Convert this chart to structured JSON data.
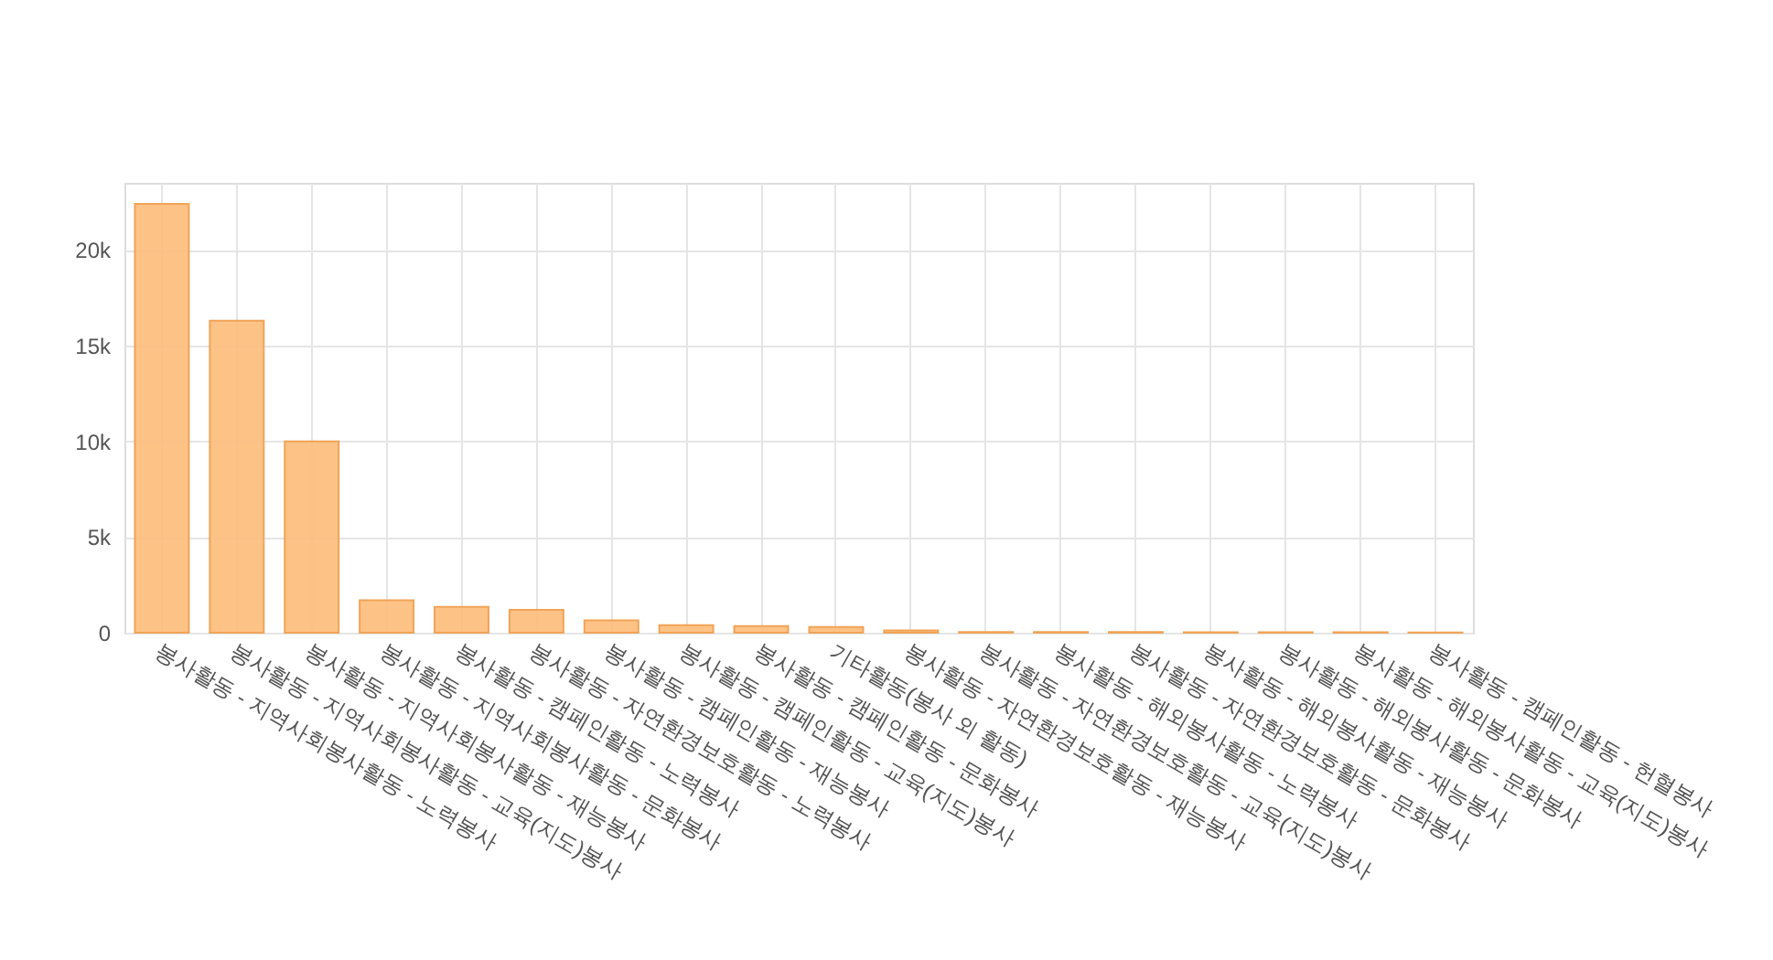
{
  "chart_data": {
    "type": "bar",
    "categories": [
      "봉사활동 - 지역사회봉사활동 - 노력봉사",
      "봉사활동 - 지역사회봉사활동 - 교육(지도)봉사",
      "봉사활동 - 지역사회봉사활동 - 재능봉사",
      "봉사활동 - 지역사회봉사활동 - 문화봉사",
      "봉사활동 - 캠페인활동 - 노력봉사",
      "봉사활동 - 자연환경보호활동 - 노력봉사",
      "봉사활동 - 캠페인활동 - 재능봉사",
      "봉사활동 - 캠페인활동 - 교육(지도)봉사",
      "봉사활동 - 캠페인활동 - 문화봉사",
      "기타활동(봉사 외 활동)",
      "봉사활동 - 자연환경보호활동 - 재능봉사",
      "봉사활동 - 자연환경보호활동 - 교육(지도)봉사",
      "봉사활동 - 해외봉사활동 - 노력봉사",
      "봉사활동 - 자연환경보호활동 - 문화봉사",
      "봉사활동 - 해외봉사활동 - 재능봉사",
      "봉사활동 - 해외봉사활동 - 문화봉사",
      "봉사활동 - 해외봉사활동 - 교육(지도)봉사",
      "봉사활동 - 캠페인활동 - 헌혈봉사"
    ],
    "values": [
      22400,
      16300,
      10000,
      1700,
      1350,
      1200,
      650,
      400,
      350,
      300,
      120,
      40,
      30,
      30,
      20,
      20,
      20,
      10
    ],
    "color": "#fdbf80",
    "ylim": [
      0,
      23500
    ],
    "yticks": [
      {
        "value": 0,
        "label": "0"
      },
      {
        "value": 5000,
        "label": "5k"
      },
      {
        "value": 10000,
        "label": "10k"
      },
      {
        "value": 15000,
        "label": "15k"
      },
      {
        "value": 20000,
        "label": "20k"
      }
    ],
    "grid": true
  }
}
